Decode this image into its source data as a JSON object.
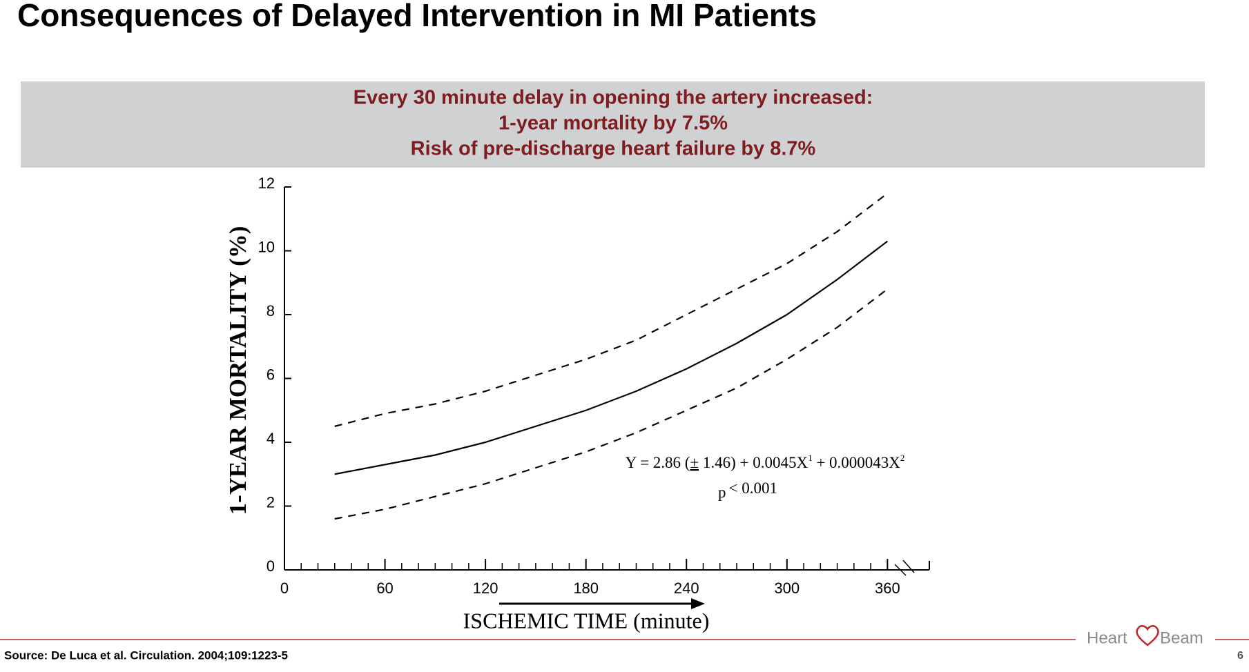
{
  "title": "Consequences of Delayed Intervention in MI Patients",
  "banner": [
    "Every 30 minute delay in opening the artery increased:",
    "1-year mortality by 7.5%",
    "Risk of pre-discharge heart failure by 8.7%"
  ],
  "chart_data": {
    "type": "line",
    "ylabel": "1-YEAR MORTALITY (%)",
    "xlabel": "ISCHEMIC TIME (minute)",
    "x": [
      30,
      60,
      90,
      120,
      150,
      180,
      210,
      240,
      270,
      300,
      330,
      360
    ],
    "series": [
      {
        "color": "#000000",
        "dashed": false,
        "values": [
          3.0,
          3.3,
          3.6,
          4.0,
          4.5,
          5.0,
          5.6,
          6.3,
          7.1,
          8.0,
          9.1,
          10.3
        ]
      },
      {
        "color": "#000000",
        "dashed": true,
        "values": [
          4.5,
          4.9,
          5.2,
          5.6,
          6.1,
          6.6,
          7.2,
          8.0,
          8.8,
          9.6,
          10.6,
          11.8
        ]
      },
      {
        "color": "#000000",
        "dashed": true,
        "values": [
          1.6,
          1.9,
          2.3,
          2.7,
          3.2,
          3.7,
          4.3,
          5.0,
          5.7,
          6.6,
          7.6,
          8.8
        ]
      }
    ],
    "xlim": [
      0,
      385
    ],
    "xticks": [
      0,
      60,
      120,
      180,
      240,
      300,
      360
    ],
    "xminorticks": [
      10,
      20,
      30,
      40,
      50,
      70,
      80,
      90,
      100,
      110,
      130,
      140,
      150,
      160,
      170,
      190,
      200,
      210,
      220,
      230,
      250,
      260,
      270,
      280,
      290,
      310,
      320,
      330,
      340,
      350
    ],
    "ylim": [
      0,
      12
    ],
    "yticks": [
      0,
      2,
      4,
      6,
      8,
      10,
      12
    ],
    "equation": [
      "Y = 2.86 (",
      "±",
      " 1.46) + 0.0045X",
      "1",
      " + 0.000043X",
      "2"
    ],
    "p_value": [
      "p",
      "< 0.001"
    ]
  },
  "footer": {
    "source": "Source:  De Luca et al. Circulation. 2004;109:1223-5",
    "logo": [
      "Heart",
      "Beam"
    ],
    "page": "6"
  }
}
